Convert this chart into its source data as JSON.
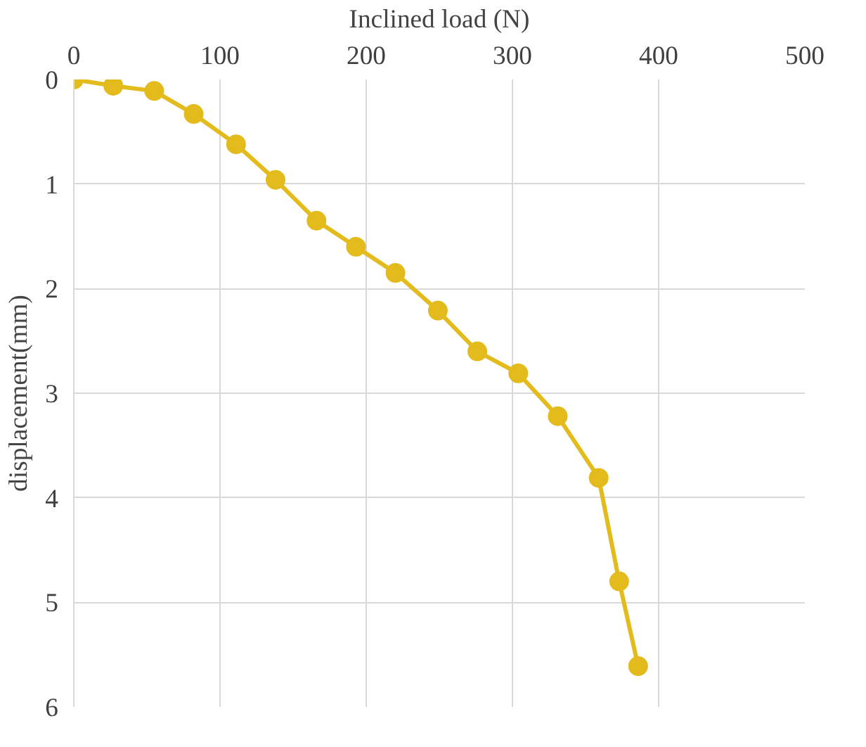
{
  "chart_data": {
    "type": "line",
    "xlabel": "Inclined load (N)",
    "ylabel": "displacement(mm)",
    "x": [
      0,
      27,
      55,
      82,
      111,
      138,
      166,
      193,
      220,
      249,
      276,
      304,
      331,
      359,
      373,
      386
    ],
    "series": [
      {
        "color": "#e3bb1c",
        "values": [
          0,
          0.06,
          0.11,
          0.33,
          0.62,
          0.96,
          1.35,
          1.6,
          1.85,
          2.21,
          2.6,
          2.81,
          3.22,
          3.81,
          4.8,
          5.61
        ]
      }
    ],
    "xlim": [
      0,
      500
    ],
    "xticks": [
      0,
      100,
      200,
      300,
      400,
      500
    ],
    "ylim": [
      6,
      0
    ],
    "yticks": [
      0,
      1,
      2,
      3,
      4,
      5,
      6
    ],
    "grid": true,
    "marker": "circle",
    "line_style": "solid"
  }
}
